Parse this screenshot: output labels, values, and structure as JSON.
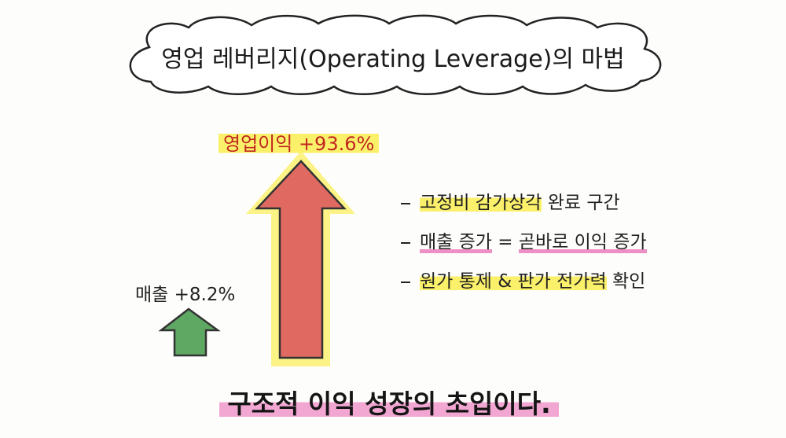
{
  "title": "영업 레버리지(Operating Leverage)의 마법",
  "profit_label": "영업이익 +93.6%",
  "sales_label": "매출 +8.2%",
  "bullets": [
    [
      "고정비 감가상각",
      "완료 구간"
    ],
    [
      "매출 증가",
      "=",
      "곧바로 이익 증가"
    ],
    [
      "원가 통제 & 판가 전가력",
      "확인"
    ]
  ],
  "conclusion": "구조적 이익 성장의 초입이다."
}
